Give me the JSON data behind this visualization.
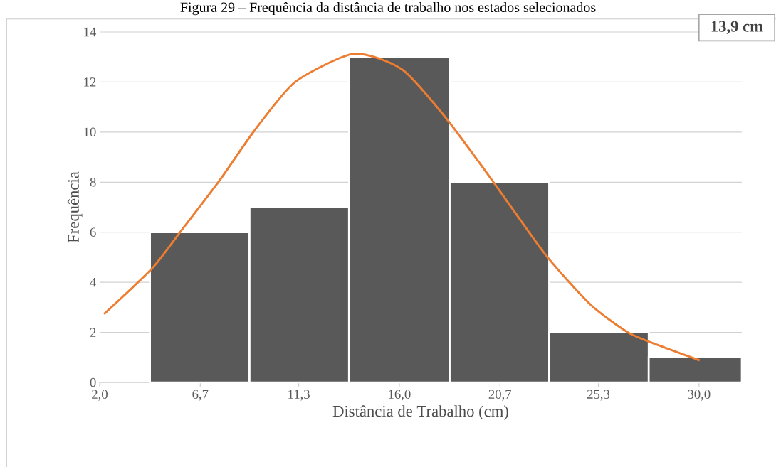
{
  "chart_data": {
    "type": "histogram",
    "title": "Figura 29 – Frequência da distância de trabalho nos estados selecionados",
    "xlabel": "Distância de Trabalho (cm)",
    "ylabel": "Frequência",
    "bins": [
      4.35,
      9.0,
      13.65,
      18.35,
      23.0,
      27.65,
      32.0
    ],
    "values": [
      6,
      7,
      13,
      8,
      2,
      1
    ],
    "color": "#595959",
    "series": [
      {
        "type": "line",
        "color": "#ed7d31",
        "x": [
          2.2,
          4.45,
          5.79,
          7.57,
          9.23,
          11.13,
          13.87,
          16.13,
          18.17,
          20.4,
          22.83,
          24.93,
          26.7,
          28.37,
          30.03
        ],
        "values": [
          2.73,
          4.56,
          6.04,
          8.03,
          10.06,
          12.0,
          13.13,
          12.5,
          10.57,
          8.0,
          5.1,
          3.11,
          1.99,
          1.4,
          0.88
        ]
      }
    ],
    "xlim": [
      2.0,
      32.0
    ],
    "ylim": [
      0,
      14
    ],
    "xticks": [
      {
        "value": 2.0,
        "label": "2,0"
      },
      {
        "value": 6.7,
        "label": "6,7"
      },
      {
        "value": 11.3,
        "label": "11,3"
      },
      {
        "value": 16.0,
        "label": "16,0"
      },
      {
        "value": 20.7,
        "label": "20,7"
      },
      {
        "value": 25.3,
        "label": "25,3"
      },
      {
        "value": 30.0,
        "label": "30,0"
      }
    ],
    "yticks": [
      0,
      2,
      4,
      6,
      8,
      10,
      12,
      14
    ],
    "grid": "y",
    "annotations": [
      "13,9 cm"
    ]
  }
}
